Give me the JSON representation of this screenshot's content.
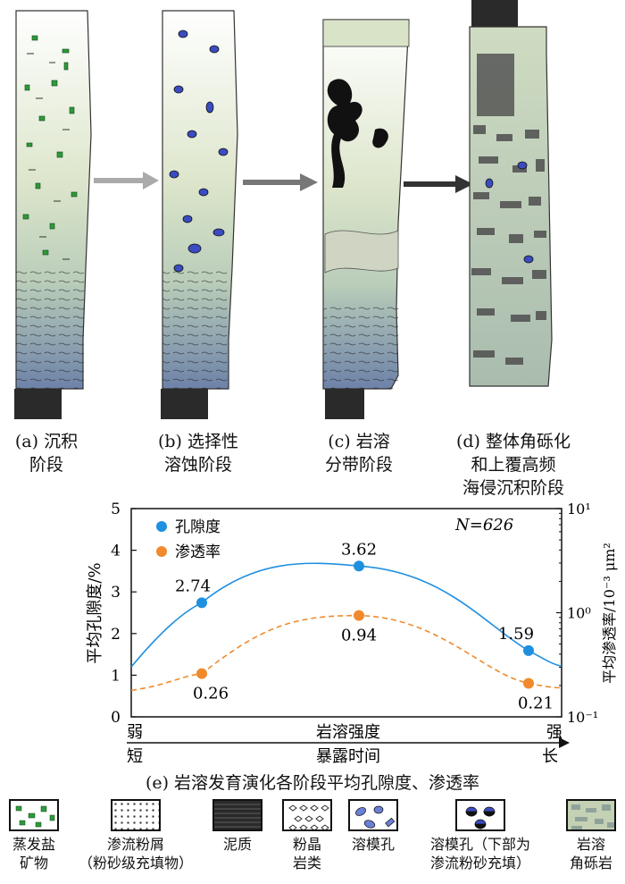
{
  "stages": [
    {
      "id": "a",
      "line1": "(a) 沉积",
      "line2": "阶段",
      "line3": ""
    },
    {
      "id": "b",
      "line1": "(b) 选择性",
      "line2": "溶蚀阶段",
      "line3": ""
    },
    {
      "id": "c",
      "line1": "(c) 岩溶",
      "line2": "分带阶段",
      "line3": ""
    },
    {
      "id": "d",
      "line1": "(d) 整体角砾化",
      "line2": "和上覆高频",
      "line3": "海侵沉积阶段"
    }
  ],
  "chart": {
    "caption": "(e) 岩溶发育演化各阶段平均孔隙度、渗透率",
    "y_left_label": "平均孔隙度/%",
    "y_right_label": "平均渗透率/10⁻³ μm²",
    "y_left_ticks": [
      "0",
      "1",
      "2",
      "3",
      "4",
      "5"
    ],
    "y_right_top": "10¹",
    "y_right_mid": "10⁰",
    "y_right_bottom": "10⁻¹",
    "n_label": "N=626",
    "x_left_top": "弱",
    "x_mid_top": "岩溶强度",
    "x_right_top": "强",
    "x_left_bottom": "短",
    "x_mid_bottom": "暴露时间",
    "x_right_bottom": "长",
    "legend": {
      "porosity": "孔隙度",
      "permeability": "渗透率"
    },
    "colors": {
      "porosity": "#1f8fe0",
      "permeability": "#f08a2c"
    }
  },
  "chart_data": {
    "type": "line",
    "title": "(e) 岩溶发育演化各阶段平均孔隙度、渗透率",
    "categories": [
      "(b) 选择性溶蚀阶段",
      "(c) 岩溶分带阶段",
      "(d) 整体角砾化和上覆高频海侵沉积阶段"
    ],
    "series": [
      {
        "name": "孔隙度",
        "axis": "left",
        "values": [
          2.74,
          3.62,
          1.59
        ],
        "labels": [
          "2.74",
          "3.62",
          "1.59"
        ]
      },
      {
        "name": "渗透率",
        "axis": "right",
        "values": [
          0.26,
          0.94,
          0.21
        ],
        "labels": [
          "0.26",
          "0.94",
          "0.21"
        ]
      }
    ],
    "ylabel": "平均孔隙度/%",
    "y2label": "平均渗透率/10⁻³ μm²",
    "ylim": [
      0,
      5
    ],
    "y2lim": [
      0.1,
      10
    ],
    "y2scale": "log",
    "annotation": "N=626",
    "legend": "top-left"
  },
  "legend_items": [
    {
      "name": "evaporite",
      "line1": "蒸发盐",
      "line2": "矿物"
    },
    {
      "name": "silt",
      "line1": "渗流粉屑",
      "line2": "（粉砂级充填物）"
    },
    {
      "name": "mud",
      "line1": "泥质",
      "line2": ""
    },
    {
      "name": "powder-crystal",
      "line1": "粉晶",
      "line2": "岩类"
    },
    {
      "name": "moldic-pore",
      "line1": "溶模孔",
      "line2": ""
    },
    {
      "name": "moldic-pore-filled",
      "line1": "溶模孔（下部为",
      "line2": "渗流粉砂充填）"
    },
    {
      "name": "karst-breccia",
      "line1": "岩溶",
      "line2": "角砾岩"
    }
  ]
}
